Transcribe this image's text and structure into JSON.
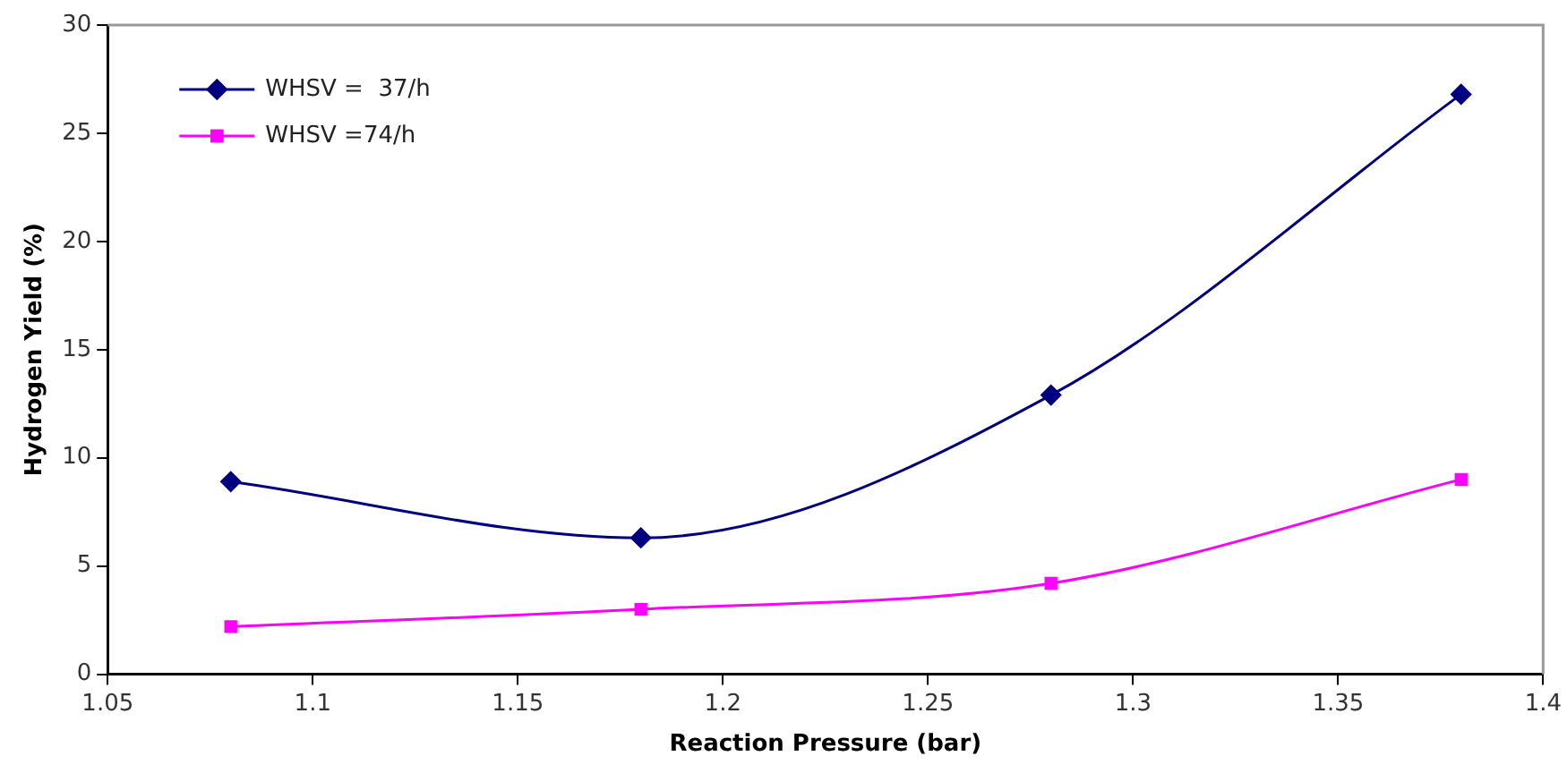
{
  "chart_data": {
    "type": "line",
    "xlabel": "Reaction Pressure (bar)",
    "ylabel": "Hydrogen Yield (%)",
    "x": [
      1.08,
      1.18,
      1.28,
      1.38
    ],
    "series": [
      {
        "name": "WHSV =  37/h",
        "color": "#000080",
        "marker": "diamond",
        "values": [
          8.9,
          6.3,
          12.9,
          26.8
        ]
      },
      {
        "name": "WHSV =74/h",
        "color": "#ff00ff",
        "marker": "square",
        "values": [
          2.2,
          3.0,
          4.2,
          9.0
        ]
      }
    ],
    "xlim": [
      1.05,
      1.4
    ],
    "xticks": [
      1.05,
      1.1,
      1.15,
      1.2,
      1.25,
      1.3,
      1.35,
      1.4
    ],
    "ylim": [
      0,
      30
    ],
    "yticks": [
      0,
      5,
      10,
      15,
      20,
      25,
      30
    ],
    "grid": false,
    "legend": "top left",
    "line_style": "solid"
  }
}
